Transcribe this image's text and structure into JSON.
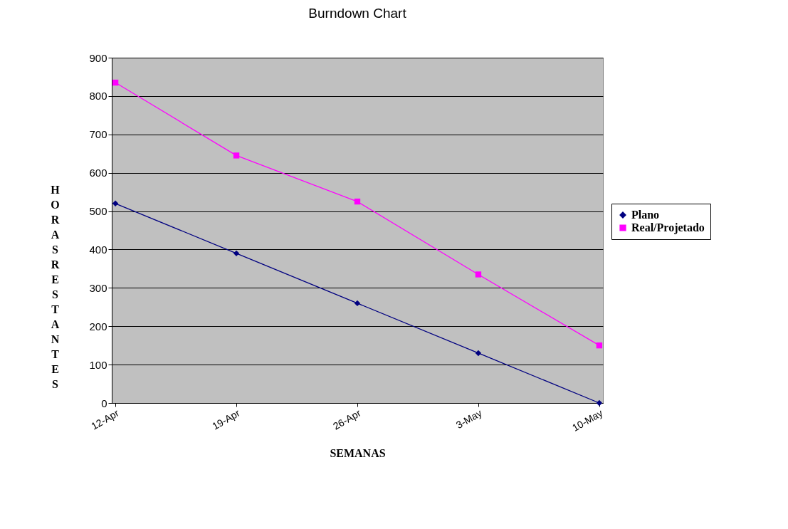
{
  "chart_data": {
    "type": "line",
    "title": "Burndown Chart",
    "xlabel": "SEMANAS",
    "ylabel": "HORAS RESTANTES",
    "categories": [
      "12-Apr",
      "19-Apr",
      "26-Apr",
      "3-May",
      "10-May"
    ],
    "series": [
      {
        "name": "Plano",
        "color": "#000080",
        "marker": "diamond",
        "values": [
          520,
          390,
          260,
          130,
          0
        ]
      },
      {
        "name": "Real/Projetado",
        "color": "#ff00ff",
        "marker": "square",
        "values": [
          835,
          645,
          525,
          335,
          150
        ]
      }
    ],
    "ylim": [
      0,
      900
    ],
    "yticks": [
      0,
      100,
      200,
      300,
      400,
      500,
      600,
      700,
      800,
      900
    ],
    "grid": "y",
    "legend": "right",
    "line_style": "solid"
  }
}
